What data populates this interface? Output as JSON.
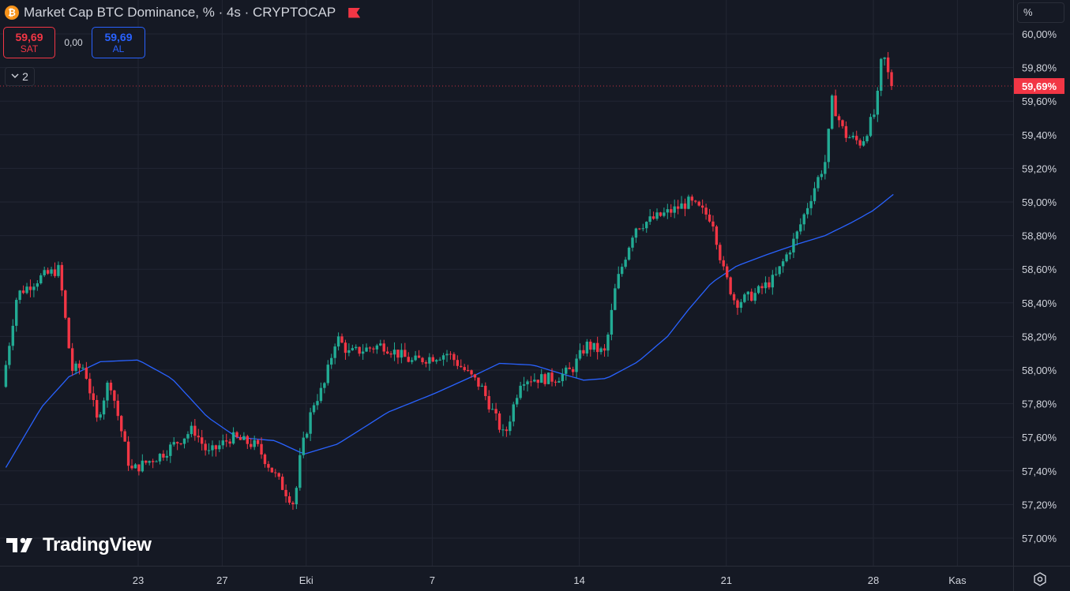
{
  "header": {
    "title": "Market Cap BTC Dominance, % · 4s · CRYPTOCAP",
    "symbol_icon": "bitcoin-icon",
    "flag_icon": "flag-icon"
  },
  "trade": {
    "sell_price": "59,69",
    "sell_label": "SAT",
    "spread": "0,00",
    "buy_price": "59,69",
    "buy_label": "AL"
  },
  "indicators": {
    "collapse_count": "2",
    "collapse_icon": "chevron-down-icon"
  },
  "price_scale": {
    "unit": "%",
    "current_price_label": "59,69%"
  },
  "brand": {
    "logo_text": "TradingView"
  },
  "colors": {
    "background": "#151924",
    "grid": "#222633",
    "up": "#22ab94",
    "down": "#f23645",
    "ma_line": "#2962ff",
    "text": "#d1d4dc"
  },
  "chart_data": {
    "type": "candlestick",
    "title": "Market Cap BTC Dominance, % · 4s · CRYPTOCAP",
    "ylim": [
      56.9,
      60.05
    ],
    "y_ticks": [
      "57,00%",
      "57,20%",
      "57,40%",
      "57,60%",
      "57,80%",
      "58,00%",
      "58,20%",
      "58,40%",
      "58,60%",
      "58,80%",
      "59,00%",
      "59,20%",
      "59,40%",
      "59,60%",
      "59,80%",
      "60,00%"
    ],
    "y_tick_values": [
      57.0,
      57.2,
      57.4,
      57.6,
      57.8,
      58.0,
      58.2,
      58.4,
      58.6,
      58.8,
      59.0,
      59.2,
      59.4,
      59.6,
      59.8,
      60.0
    ],
    "x_ticks": [
      {
        "label": "23",
        "day": 0
      },
      {
        "label": "27",
        "day": 4
      },
      {
        "label": "Eki",
        "day": 8
      },
      {
        "label": "7",
        "day": 14
      },
      {
        "label": "14",
        "day": 21
      },
      {
        "label": "21",
        "day": 28
      },
      {
        "label": "28",
        "day": 35
      },
      {
        "label": "Kas",
        "day": 39
      }
    ],
    "x_range_days": [
      -6.3,
      43.5
    ],
    "last_price": 59.69,
    "candle_keypoints": [
      [
        -6.3,
        57.9
      ],
      [
        -5.6,
        58.45
      ],
      [
        -4.5,
        58.55
      ],
      [
        -3.6,
        58.6
      ],
      [
        -3.0,
        58.0
      ],
      [
        -2.4,
        58.02
      ],
      [
        -1.8,
        57.7
      ],
      [
        -1.2,
        57.95
      ],
      [
        -0.2,
        57.4
      ],
      [
        1.3,
        57.5
      ],
      [
        2.8,
        57.65
      ],
      [
        3.5,
        57.5
      ],
      [
        4.6,
        57.6
      ],
      [
        5.8,
        57.55
      ],
      [
        6.8,
        57.35
      ],
      [
        7.6,
        57.2
      ],
      [
        7.9,
        57.5
      ],
      [
        8.5,
        57.8
      ],
      [
        9.0,
        57.9
      ],
      [
        9.6,
        58.2
      ],
      [
        10.2,
        58.1
      ],
      [
        11.8,
        58.15
      ],
      [
        13.2,
        58.05
      ],
      [
        14.9,
        58.1
      ],
      [
        15.7,
        58.0
      ],
      [
        16.5,
        57.9
      ],
      [
        17.6,
        57.6
      ],
      [
        18.4,
        57.95
      ],
      [
        20.0,
        57.95
      ],
      [
        20.8,
        58.0
      ],
      [
        21.5,
        58.15
      ],
      [
        22.4,
        58.1
      ],
      [
        22.9,
        58.5
      ],
      [
        23.8,
        58.85
      ],
      [
        24.7,
        58.9
      ],
      [
        25.6,
        58.95
      ],
      [
        26.4,
        59.0
      ],
      [
        27.5,
        58.9
      ],
      [
        28.0,
        58.6
      ],
      [
        28.6,
        58.4
      ],
      [
        29.5,
        58.45
      ],
      [
        30.5,
        58.55
      ],
      [
        31.5,
        58.8
      ],
      [
        32.4,
        59.1
      ],
      [
        32.9,
        59.25
      ],
      [
        33.2,
        59.6
      ],
      [
        33.8,
        59.4
      ],
      [
        34.6,
        59.35
      ],
      [
        35.3,
        59.55
      ],
      [
        35.6,
        59.9
      ],
      [
        36.0,
        59.69
      ]
    ],
    "ma_keypoints": [
      [
        -6.3,
        57.42
      ],
      [
        -4.6,
        57.78
      ],
      [
        -3.3,
        57.96
      ],
      [
        -1.8,
        58.05
      ],
      [
        0.0,
        58.06
      ],
      [
        1.6,
        57.95
      ],
      [
        3.3,
        57.72
      ],
      [
        4.7,
        57.6
      ],
      [
        6.5,
        57.58
      ],
      [
        7.9,
        57.5
      ],
      [
        9.5,
        57.56
      ],
      [
        11.9,
        57.75
      ],
      [
        14.1,
        57.86
      ],
      [
        15.7,
        57.95
      ],
      [
        17.2,
        58.04
      ],
      [
        18.8,
        58.03
      ],
      [
        20.1,
        57.98
      ],
      [
        21.2,
        57.94
      ],
      [
        22.3,
        57.95
      ],
      [
        23.8,
        58.05
      ],
      [
        25.2,
        58.2
      ],
      [
        26.2,
        58.36
      ],
      [
        27.3,
        58.52
      ],
      [
        28.5,
        58.62
      ],
      [
        30.0,
        58.69
      ],
      [
        31.4,
        58.75
      ],
      [
        32.7,
        58.8
      ],
      [
        34.0,
        58.88
      ],
      [
        35.0,
        58.95
      ],
      [
        36.0,
        59.05
      ]
    ]
  }
}
